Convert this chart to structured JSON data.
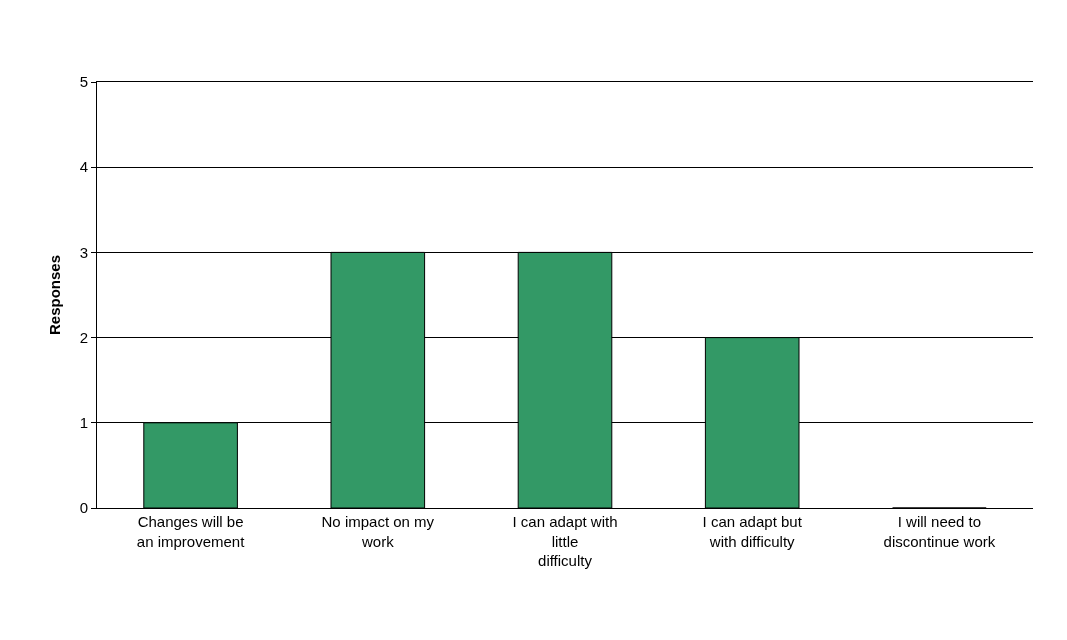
{
  "chart_data": {
    "type": "bar",
    "ylabel": "Responses",
    "categories": [
      "Changes will be an improvement",
      "No impact on my work",
      "I can adapt with little difficulty",
      "I can adapt but with difficulty",
      "I will need to discontinue work"
    ],
    "values": [
      1,
      3,
      3,
      2,
      0
    ],
    "color": "#339966",
    "ylim": [
      0,
      5
    ],
    "yticks": [
      0,
      1,
      2,
      3,
      4,
      5
    ],
    "grid": "y"
  }
}
